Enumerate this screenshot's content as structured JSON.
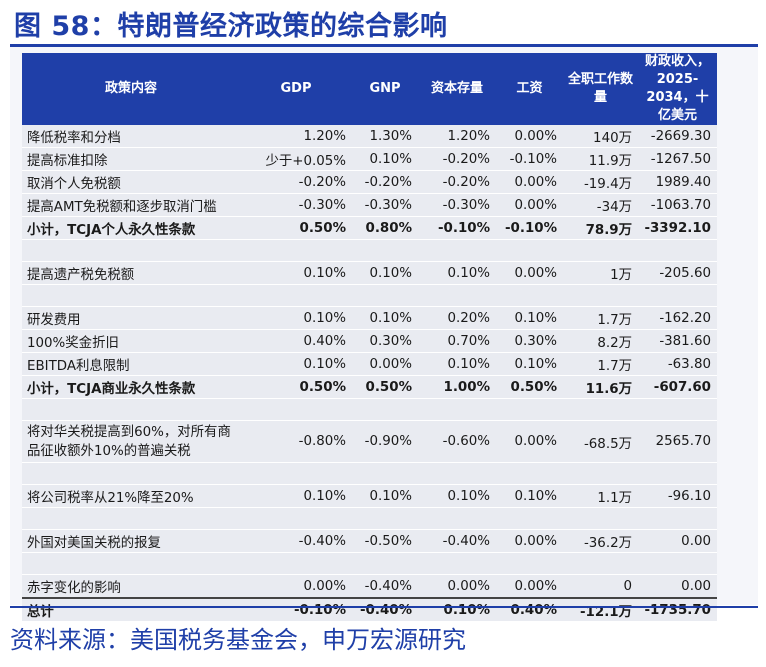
{
  "title": "图 58：特朗普经济政策的综合影响",
  "headers": [
    "政策内容",
    "GDP",
    "GNP",
    "资本存量",
    "工资",
    "全职工作数量",
    "财政收入，2025-2034，十亿美元"
  ],
  "rows": [
    {
      "label": "降低税率和分档",
      "gdp": "1.20%",
      "gnp": "1.30%",
      "capital": "1.20%",
      "wage": "0.00%",
      "jobs": "140万",
      "revenue": "-2669.30"
    },
    {
      "label": "提高标准扣除",
      "gdp": "少于+0.05%",
      "gnp": "0.10%",
      "capital": "-0.20%",
      "wage": "-0.10%",
      "jobs": "11.9万",
      "revenue": "-1267.50"
    },
    {
      "label": "取消个人免税额",
      "gdp": "-0.20%",
      "gnp": "-0.20%",
      "capital": "-0.20%",
      "wage": "0.00%",
      "jobs": "-19.4万",
      "revenue": "1989.40"
    },
    {
      "label": "提高AMT免税额和逐步取消门槛",
      "gdp": "-0.30%",
      "gnp": "-0.30%",
      "capital": "-0.30%",
      "wage": "0.00%",
      "jobs": "-34万",
      "revenue": "-1063.70"
    },
    {
      "label": "小计，TCJA个人永久性条款",
      "gdp": "0.50%",
      "gnp": "0.80%",
      "capital": "-0.10%",
      "wage": "-0.10%",
      "jobs": "78.9万",
      "revenue": "-3392.10"
    },
    {
      "label": "提高遗产税免税额",
      "gdp": "0.10%",
      "gnp": "0.10%",
      "capital": "0.10%",
      "wage": "0.00%",
      "jobs": "1万",
      "revenue": "-205.60"
    },
    {
      "label": "研发费用",
      "gdp": "0.10%",
      "gnp": "0.10%",
      "capital": "0.20%",
      "wage": "0.10%",
      "jobs": "1.7万",
      "revenue": "-162.20"
    },
    {
      "label": "100%奖金折旧",
      "gdp": "0.40%",
      "gnp": "0.30%",
      "capital": "0.70%",
      "wage": "0.30%",
      "jobs": "8.2万",
      "revenue": "-381.60"
    },
    {
      "label": "EBITDA利息限制",
      "gdp": "0.10%",
      "gnp": "0.00%",
      "capital": "0.10%",
      "wage": "0.10%",
      "jobs": "1.7万",
      "revenue": "-63.80"
    },
    {
      "label": "小计，TCJA商业永久性条款",
      "gdp": "0.50%",
      "gnp": "0.50%",
      "capital": "1.00%",
      "wage": "0.50%",
      "jobs": "11.6万",
      "revenue": "-607.60"
    },
    {
      "label": "将对华关税提高到60%，对所有商品征收额外10%的普遍关税",
      "gdp": "-0.80%",
      "gnp": "-0.90%",
      "capital": "-0.60%",
      "wage": "0.00%",
      "jobs": "-68.5万",
      "revenue": "2565.70"
    },
    {
      "label": "将公司税率从21%降至20%",
      "gdp": "0.10%",
      "gnp": "0.10%",
      "capital": "0.10%",
      "wage": "0.10%",
      "jobs": "1.1万",
      "revenue": "-96.10"
    },
    {
      "label": "外国对美国关税的报复",
      "gdp": "-0.40%",
      "gnp": "-0.50%",
      "capital": "-0.40%",
      "wage": "0.00%",
      "jobs": "-36.2万",
      "revenue": "0.00"
    },
    {
      "label": "赤字变化的影响",
      "gdp": "0.00%",
      "gnp": "-0.40%",
      "capital": "0.00%",
      "wage": "0.00%",
      "jobs": "0",
      "revenue": "0.00"
    },
    {
      "label": "总计",
      "gdp": "-0.10%",
      "gnp": "-0.40%",
      "capital": "0.10%",
      "wage": "0.40%",
      "jobs": "-12.1万",
      "revenue": "-1735.70"
    }
  ],
  "source": "资料来源：美国税务基金会，申万宏源研究"
}
